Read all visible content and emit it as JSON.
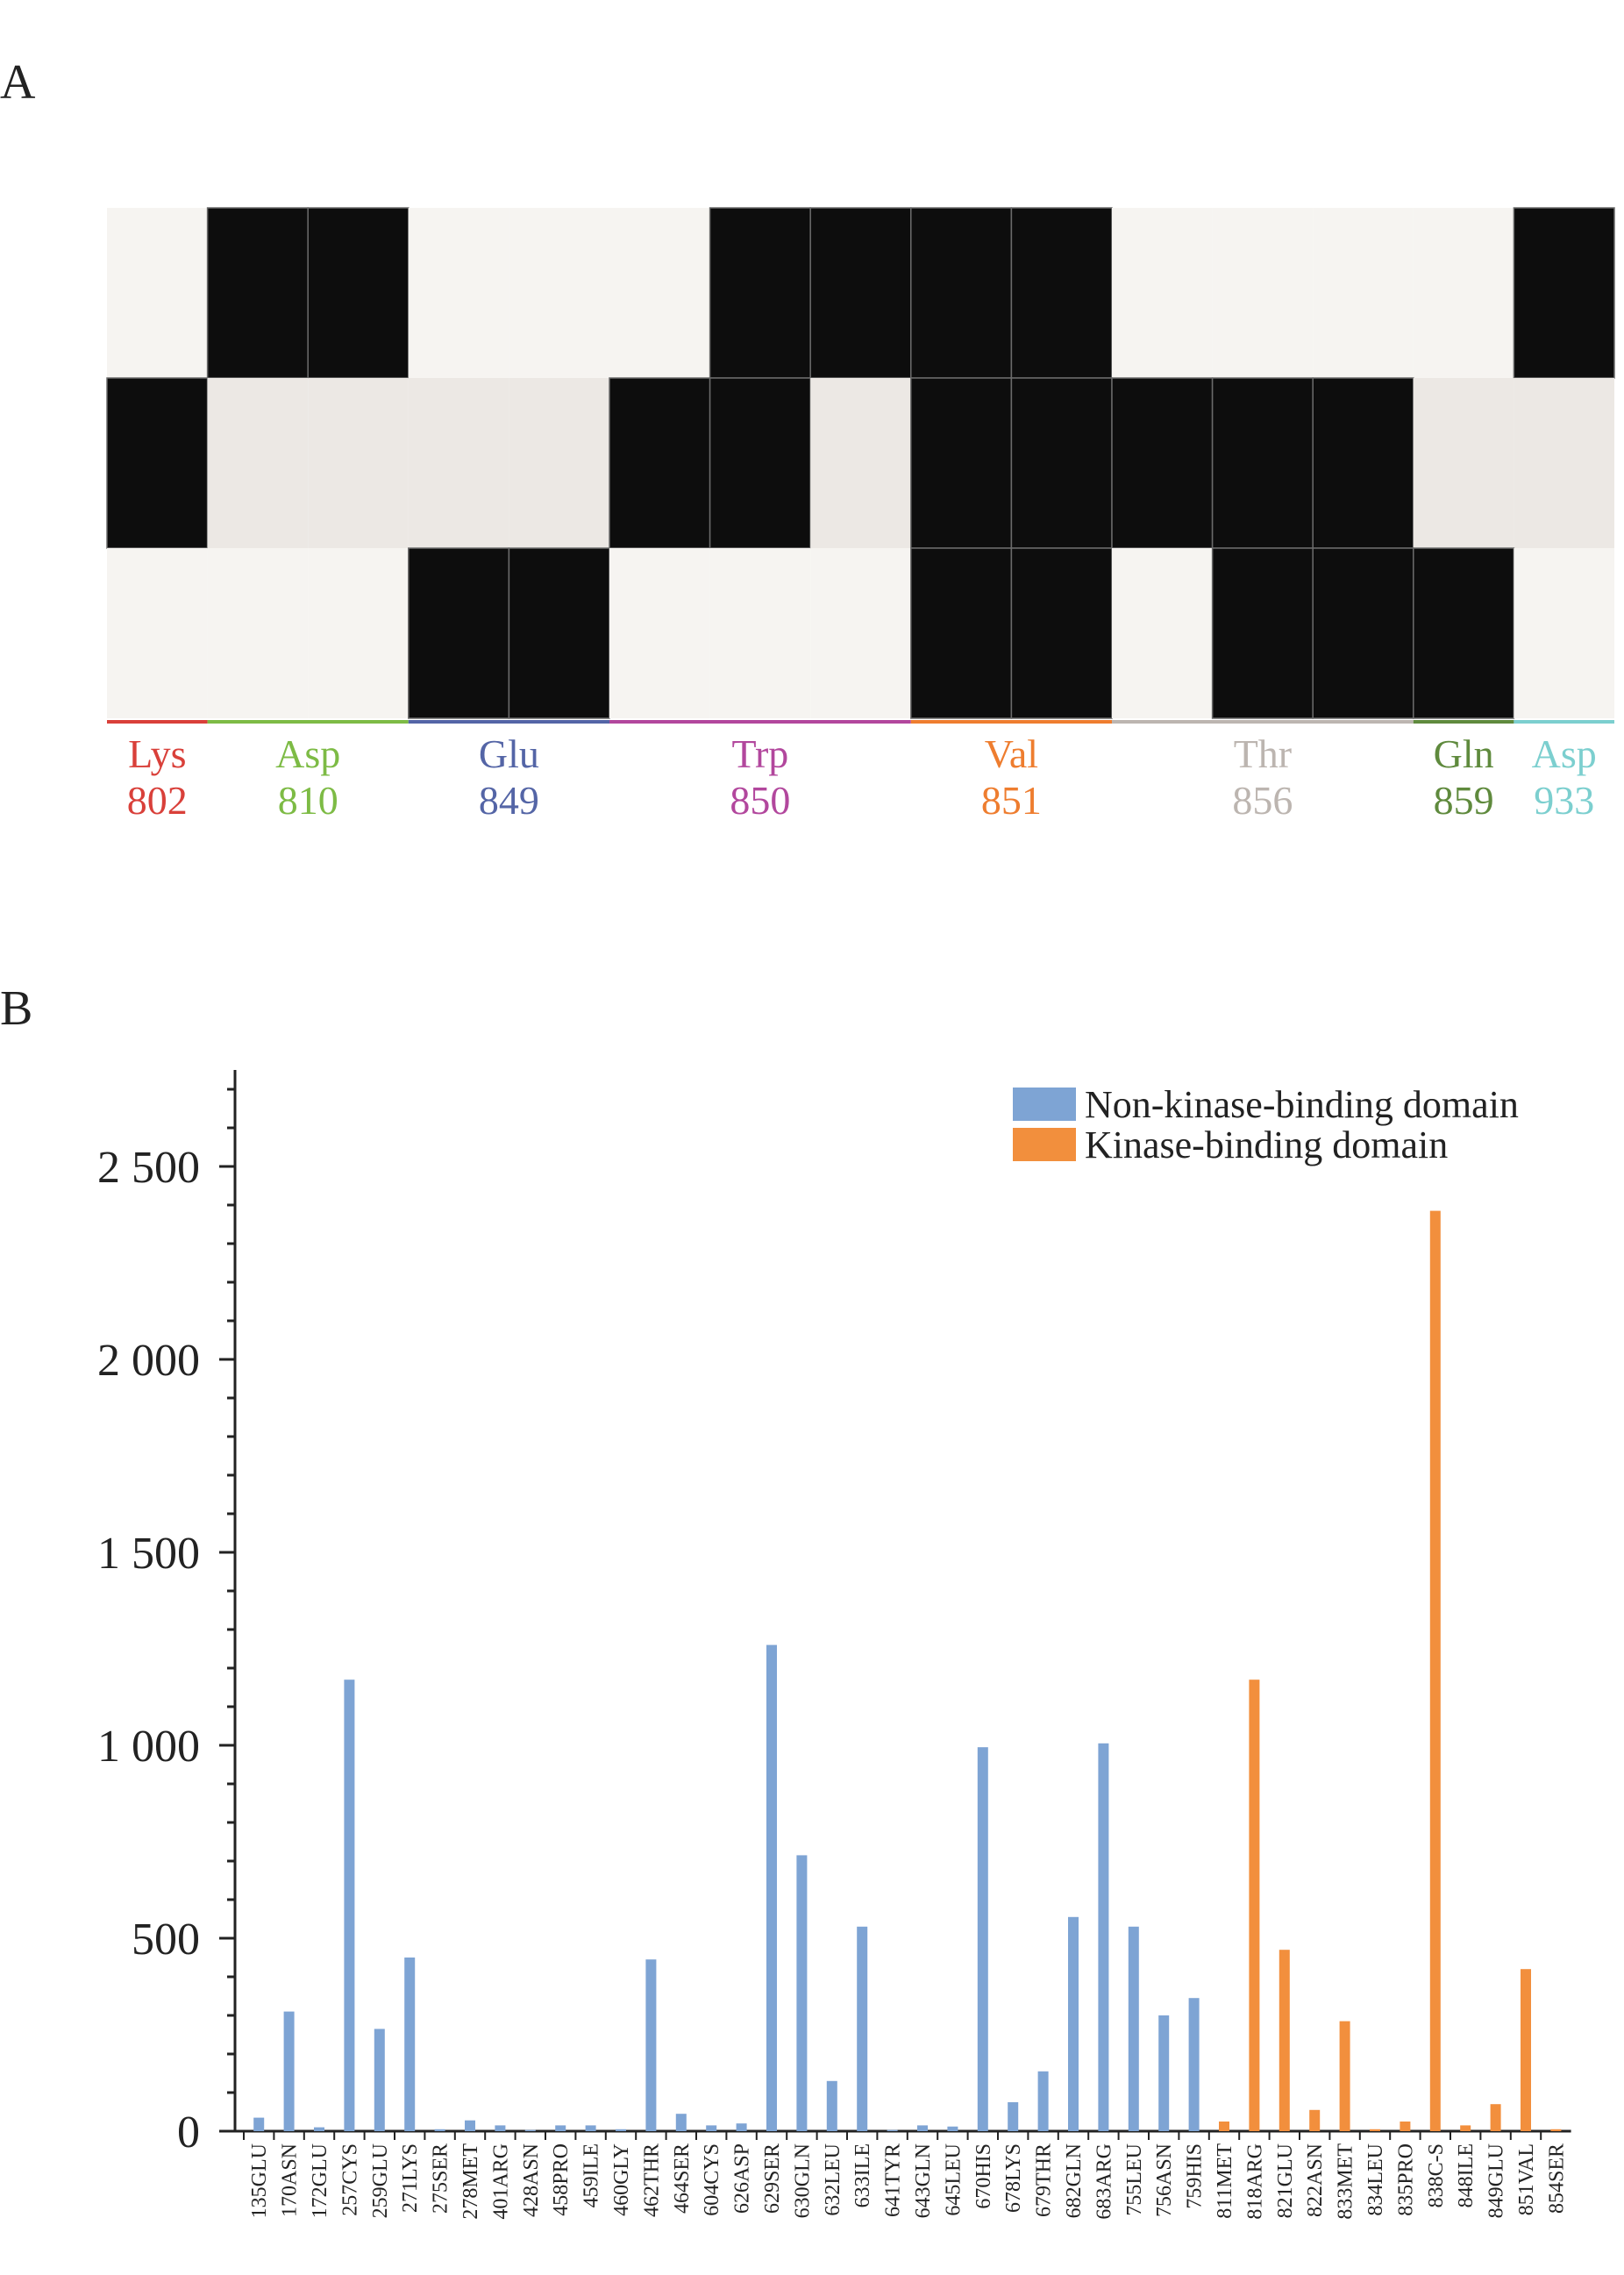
{
  "panels": {
    "a_label": "A",
    "b_label": "B"
  },
  "colors": {
    "filled": "#0d0d0d",
    "empty_light": "#f6f4f1",
    "empty_mid": "#ece8e4",
    "non_kinase": "#7ea4d4",
    "kinase": "#f28f3d"
  },
  "chart_data": [
    {
      "type": "heatmap",
      "title": "",
      "rows": 3,
      "columns": 15,
      "row_background": [
        "light",
        "mid",
        "light"
      ],
      "cells": [
        [
          0,
          1,
          1,
          0,
          0,
          0,
          1,
          1,
          1,
          1,
          0,
          0,
          0,
          0,
          1
        ],
        [
          1,
          0,
          0,
          0,
          0,
          1,
          1,
          0,
          1,
          1,
          1,
          1,
          1,
          0,
          0
        ],
        [
          0,
          0,
          0,
          1,
          1,
          0,
          0,
          0,
          1,
          1,
          0,
          1,
          1,
          1,
          0
        ]
      ],
      "residue_groups": [
        {
          "name": "Lys",
          "number": "802",
          "color": "#d9403a",
          "start": 0,
          "end": 1
        },
        {
          "name": "Asp",
          "number": "810",
          "color": "#7dbb45",
          "start": 1,
          "end": 3
        },
        {
          "name": "Glu",
          "number": "849",
          "color": "#5465a6",
          "start": 3,
          "end": 5
        },
        {
          "name": "Trp",
          "number": "850",
          "color": "#b2479d",
          "start": 5,
          "end": 8
        },
        {
          "name": "Val",
          "number": "851",
          "color": "#ee7d2f",
          "start": 8,
          "end": 10
        },
        {
          "name": "Thr",
          "number": "856",
          "color": "#bcb5b0",
          "start": 10,
          "end": 13
        },
        {
          "name": "Gln",
          "number": "859",
          "color": "#5f8a3d",
          "start": 13,
          "end": 14
        },
        {
          "name": "Asp",
          "number": "933",
          "color": "#7ccfcf",
          "start": 14,
          "end": 15
        }
      ]
    },
    {
      "type": "bar",
      "title": "",
      "xlabel": "",
      "ylabel": "",
      "ylim": [
        0,
        2750
      ],
      "yticks": [
        0,
        500,
        1000,
        1500,
        2000,
        2500
      ],
      "ytick_labels": [
        "0",
        "500",
        "1 000",
        "1 500",
        "2 000",
        "2 500"
      ],
      "categories": [
        "135GLU",
        "170ASN",
        "172GLU",
        "257CYS",
        "259GLU",
        "271LYS",
        "275SER",
        "278MET",
        "401ARG",
        "428ASN",
        "458PRO",
        "459ILE",
        "460GLY",
        "462THR",
        "464SER",
        "604CYS",
        "626ASP",
        "629SER",
        "630GLN",
        "632LEU",
        "633ILE",
        "641TYR",
        "643GLN",
        "645LEU",
        "670HIS",
        "678LYS",
        "679THR",
        "682GLN",
        "683ARG",
        "755LEU",
        "756ASN",
        "759HIS",
        "811MET",
        "818ARG",
        "821GLU",
        "822ASN",
        "833MET",
        "834LEU",
        "835PRO",
        "838C-S",
        "848ILE",
        "849GLU",
        "851VAL",
        "854SER"
      ],
      "series": [
        {
          "name": "Non-kinase-binding domain",
          "values": [
            35,
            310,
            10,
            1170,
            265,
            450,
            5,
            28,
            15,
            3,
            15,
            15,
            5,
            445,
            45,
            15,
            20,
            1260,
            715,
            130,
            530,
            3,
            15,
            12,
            995,
            75,
            155,
            555,
            1005,
            530,
            300,
            345,
            null,
            null,
            null,
            null,
            null,
            null,
            null,
            null,
            null,
            null,
            null,
            null
          ]
        },
        {
          "name": "Kinase-binding domain",
          "values": [
            null,
            null,
            null,
            null,
            null,
            null,
            null,
            null,
            null,
            null,
            null,
            null,
            null,
            null,
            null,
            null,
            null,
            null,
            null,
            null,
            null,
            null,
            null,
            null,
            null,
            null,
            null,
            null,
            null,
            null,
            null,
            null,
            25,
            1170,
            470,
            55,
            285,
            5,
            25,
            2385,
            15,
            70,
            420,
            5
          ]
        }
      ],
      "legend_placement": "top-right"
    }
  ]
}
